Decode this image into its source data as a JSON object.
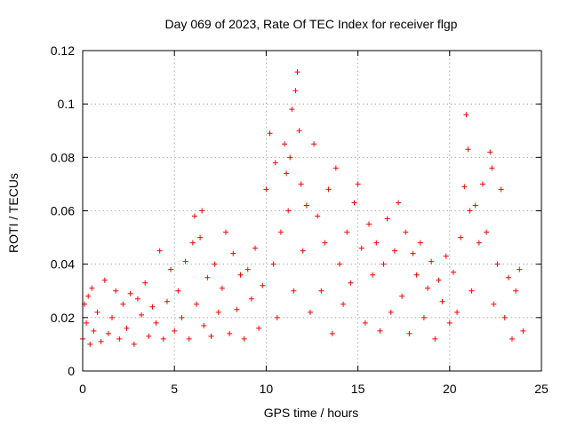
{
  "chart_data": {
    "type": "scatter",
    "title": "Day 069 of 2023, Rate Of TEC Index for receiver flgp",
    "xlabel": "GPS time / hours",
    "ylabel": "ROTI / TECUs",
    "xlim": [
      0,
      25
    ],
    "ylim": [
      0,
      0.12
    ],
    "x_ticks": [
      0,
      5,
      10,
      15,
      20,
      25
    ],
    "x_tick_labels": [
      "0",
      "5",
      "10",
      "15",
      "20",
      "25"
    ],
    "y_ticks": [
      0,
      0.02,
      0.04,
      0.06,
      0.08,
      0.1,
      0.12
    ],
    "y_tick_labels": [
      "0",
      "0.02",
      "0.04",
      "0.06",
      "0.08",
      "0.1",
      "0.12"
    ],
    "grid": true,
    "marker": "+",
    "color": "#ff0000",
    "series": [
      {
        "name": "ROTI",
        "points": [
          [
            0.0,
            0.012
          ],
          [
            0.1,
            0.025
          ],
          [
            0.2,
            0.018
          ],
          [
            0.3,
            0.028
          ],
          [
            0.4,
            0.01
          ],
          [
            0.5,
            0.031
          ],
          [
            0.6,
            0.015
          ],
          [
            0.8,
            0.022
          ],
          [
            1.0,
            0.011
          ],
          [
            1.2,
            0.034
          ],
          [
            1.4,
            0.014
          ],
          [
            1.6,
            0.02
          ],
          [
            1.8,
            0.03
          ],
          [
            2.0,
            0.012
          ],
          [
            2.2,
            0.025
          ],
          [
            2.4,
            0.016
          ],
          [
            2.6,
            0.029
          ],
          [
            2.8,
            0.01
          ],
          [
            3.0,
            0.027
          ],
          [
            3.2,
            0.021
          ],
          [
            3.4,
            0.033
          ],
          [
            3.6,
            0.013
          ],
          [
            3.8,
            0.024
          ],
          [
            4.0,
            0.018
          ],
          [
            4.2,
            0.045
          ],
          [
            4.4,
            0.012
          ],
          [
            4.6,
            0.026
          ],
          [
            4.8,
            0.038
          ],
          [
            5.0,
            0.015
          ],
          [
            5.2,
            0.03
          ],
          [
            5.4,
            0.02
          ],
          [
            5.6,
            0.041
          ],
          [
            5.8,
            0.012
          ],
          [
            6.0,
            0.048
          ],
          [
            6.1,
            0.058
          ],
          [
            6.2,
            0.025
          ],
          [
            6.4,
            0.05
          ],
          [
            6.5,
            0.06
          ],
          [
            6.6,
            0.017
          ],
          [
            6.8,
            0.035
          ],
          [
            7.0,
            0.013
          ],
          [
            7.2,
            0.04
          ],
          [
            7.4,
            0.022
          ],
          [
            7.6,
            0.031
          ],
          [
            7.8,
            0.052
          ],
          [
            8.0,
            0.014
          ],
          [
            8.2,
            0.044
          ],
          [
            8.4,
            0.023
          ],
          [
            8.6,
            0.036
          ],
          [
            8.8,
            0.012
          ],
          [
            9.0,
            0.038
          ],
          [
            9.2,
            0.027
          ],
          [
            9.4,
            0.046
          ],
          [
            9.6,
            0.016
          ],
          [
            9.8,
            0.032
          ],
          [
            10.0,
            0.068
          ],
          [
            10.2,
            0.089
          ],
          [
            10.4,
            0.04
          ],
          [
            10.5,
            0.078
          ],
          [
            10.6,
            0.02
          ],
          [
            10.8,
            0.052
          ],
          [
            11.0,
            0.085
          ],
          [
            11.1,
            0.074
          ],
          [
            11.2,
            0.06
          ],
          [
            11.3,
            0.08
          ],
          [
            11.4,
            0.098
          ],
          [
            11.5,
            0.03
          ],
          [
            11.6,
            0.105
          ],
          [
            11.7,
            0.112
          ],
          [
            11.8,
            0.09
          ],
          [
            11.9,
            0.07
          ],
          [
            12.0,
            0.045
          ],
          [
            12.2,
            0.062
          ],
          [
            12.4,
            0.022
          ],
          [
            12.6,
            0.085
          ],
          [
            12.8,
            0.058
          ],
          [
            13.0,
            0.03
          ],
          [
            13.2,
            0.048
          ],
          [
            13.4,
            0.068
          ],
          [
            13.6,
            0.014
          ],
          [
            13.8,
            0.076
          ],
          [
            14.0,
            0.04
          ],
          [
            14.2,
            0.025
          ],
          [
            14.4,
            0.052
          ],
          [
            14.6,
            0.033
          ],
          [
            14.8,
            0.063
          ],
          [
            15.0,
            0.07
          ],
          [
            15.2,
            0.046
          ],
          [
            15.4,
            0.018
          ],
          [
            15.6,
            0.055
          ],
          [
            15.8,
            0.036
          ],
          [
            16.0,
            0.048
          ],
          [
            16.2,
            0.015
          ],
          [
            16.4,
            0.04
          ],
          [
            16.6,
            0.057
          ],
          [
            16.8,
            0.022
          ],
          [
            17.0,
            0.045
          ],
          [
            17.2,
            0.063
          ],
          [
            17.4,
            0.028
          ],
          [
            17.6,
            0.052
          ],
          [
            17.8,
            0.014
          ],
          [
            18.0,
            0.044
          ],
          [
            18.2,
            0.036
          ],
          [
            18.4,
            0.048
          ],
          [
            18.6,
            0.02
          ],
          [
            18.8,
            0.031
          ],
          [
            19.0,
            0.041
          ],
          [
            19.2,
            0.012
          ],
          [
            19.4,
            0.034
          ],
          [
            19.6,
            0.026
          ],
          [
            19.8,
            0.043
          ],
          [
            20.0,
            0.018
          ],
          [
            20.2,
            0.037
          ],
          [
            20.4,
            0.022
          ],
          [
            20.6,
            0.05
          ],
          [
            20.8,
            0.069
          ],
          [
            20.9,
            0.096
          ],
          [
            21.0,
            0.083
          ],
          [
            21.1,
            0.06
          ],
          [
            21.2,
            0.03
          ],
          [
            21.4,
            0.062
          ],
          [
            21.6,
            0.048
          ],
          [
            21.8,
            0.07
          ],
          [
            22.0,
            0.052
          ],
          [
            22.2,
            0.082
          ],
          [
            22.3,
            0.076
          ],
          [
            22.4,
            0.025
          ],
          [
            22.6,
            0.04
          ],
          [
            22.8,
            0.068
          ],
          [
            23.0,
            0.02
          ],
          [
            23.2,
            0.035
          ],
          [
            23.4,
            0.012
          ],
          [
            23.6,
            0.03
          ],
          [
            23.8,
            0.038
          ],
          [
            24.0,
            0.015
          ]
        ]
      }
    ]
  }
}
